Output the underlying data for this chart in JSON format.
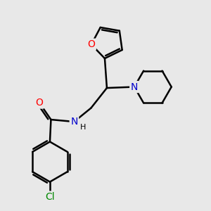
{
  "bg_color": "#e8e8e8",
  "bond_color": "#000000",
  "atom_colors": {
    "O": "#ff0000",
    "N": "#0000cc",
    "Cl": "#008800",
    "C": "#000000"
  },
  "bond_width": 1.8,
  "font_size_atoms": 10,
  "font_size_H": 8,
  "xlim": [
    0,
    10
  ],
  "ylim": [
    0,
    10
  ]
}
